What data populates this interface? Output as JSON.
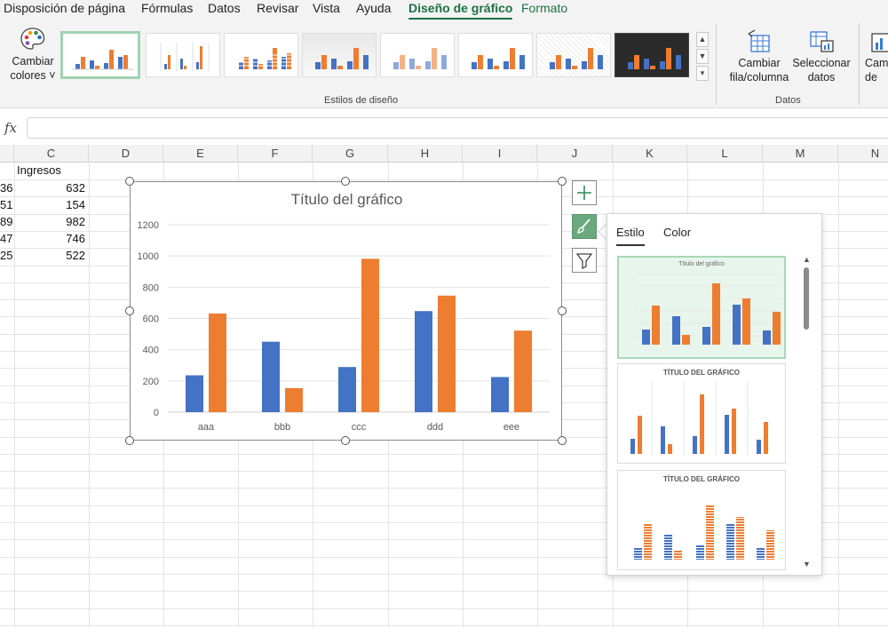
{
  "ribbon_tabs": [
    {
      "label": "Disposición de página"
    },
    {
      "label": "Fórmulas"
    },
    {
      "label": "Datos"
    },
    {
      "label": "Revisar"
    },
    {
      "label": "Vista"
    },
    {
      "label": "Ayuda"
    },
    {
      "label": "Diseño de gráfico"
    },
    {
      "label": "Formato"
    }
  ],
  "ribbon": {
    "change_colors_line1": "Cambiar",
    "change_colors_line2": "colores ˅",
    "styles_group_label": "Estilos de diseño",
    "switch_rowcol_line1": "Cambiar",
    "switch_rowcol_line2": "fila/columna",
    "select_data_line1": "Seleccionar",
    "select_data_line2": "datos",
    "data_group_label": "Datos",
    "change_type_line1": "Cam",
    "change_type_line2": "de"
  },
  "formula_bar": {
    "fx": "fx",
    "value": ""
  },
  "columns": [
    "C",
    "D",
    "E",
    "F",
    "G",
    "H",
    "I",
    "J",
    "K",
    "L",
    "M",
    "N"
  ],
  "cells": {
    "header_c": "Ingresos",
    "col_b": [
      "36",
      "51",
      "89",
      "47",
      "25"
    ],
    "col_c": [
      "632",
      "154",
      "982",
      "746",
      "522"
    ]
  },
  "colors": {
    "blue": "#4472c4",
    "orange": "#ed7d31",
    "accent": "#1e7145"
  },
  "chart_data": {
    "type": "bar",
    "title": "Título del gráfico",
    "categories": [
      "aaa",
      "bbb",
      "ccc",
      "ddd",
      "eee"
    ],
    "series": [
      {
        "values": [
          236,
          451,
          289,
          647,
          225
        ]
      },
      {
        "values": [
          632,
          154,
          982,
          746,
          522
        ]
      }
    ],
    "ylim": [
      0,
      1200
    ],
    "yticks": [
      0,
      200,
      400,
      600,
      800,
      1000,
      1200
    ],
    "grid": true
  },
  "style_pane": {
    "tab_style": "Estilo",
    "tab_color": "Color",
    "thumb1_title": "Título del gráfico",
    "thumb2_title": "TÍTULO DEL GRÁFICO",
    "thumb3_title": "TÍTULO DEL GRÁFICO"
  }
}
